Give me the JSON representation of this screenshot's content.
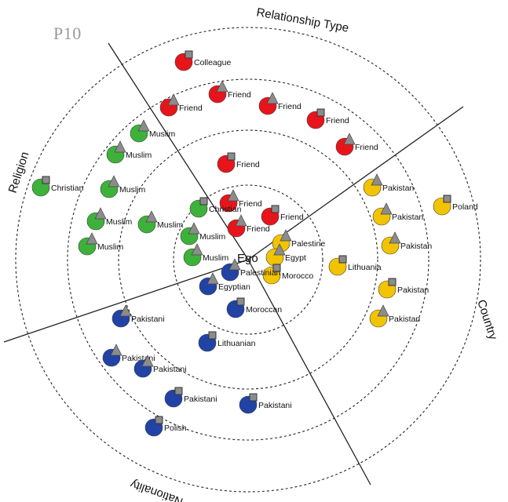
{
  "panel_id": "P10",
  "ego_label": "Ego",
  "sector_titles": {
    "relationship": "Relationship Type",
    "religion": "Religion",
    "country": "Country",
    "nationality": "Nationality"
  },
  "colors": {
    "relationship": "#e8141c",
    "religion": "#3db23a",
    "country": "#f2c400",
    "nationality": "#2243a6",
    "marker_triangle": "#8c8c8c",
    "marker_square": "#8c8c8c"
  },
  "nodes": [
    {
      "group": "relationship",
      "label": "Colleague",
      "marker": "square"
    },
    {
      "group": "relationship",
      "label": "Friend",
      "marker": "triangle"
    },
    {
      "group": "relationship",
      "label": "Friend",
      "marker": "triangle"
    },
    {
      "group": "relationship",
      "label": "Friend",
      "marker": "triangle"
    },
    {
      "group": "relationship",
      "label": "Friend",
      "marker": "square"
    },
    {
      "group": "relationship",
      "label": "Friend",
      "marker": "triangle"
    },
    {
      "group": "relationship",
      "label": "Friend",
      "marker": "square"
    },
    {
      "group": "relationship",
      "label": "Friend",
      "marker": "triangle"
    },
    {
      "group": "relationship",
      "label": "Friend",
      "marker": "square"
    },
    {
      "group": "relationship",
      "label": "Friend",
      "marker": "triangle"
    },
    {
      "group": "religion",
      "label": "Muslim",
      "marker": "triangle"
    },
    {
      "group": "religion",
      "label": "Muslim",
      "marker": "triangle"
    },
    {
      "group": "religion",
      "label": "Christian",
      "marker": "square"
    },
    {
      "group": "religion",
      "label": "Muslim",
      "marker": "triangle"
    },
    {
      "group": "religion",
      "label": "Muslim",
      "marker": "triangle"
    },
    {
      "group": "religion",
      "label": "Muslim",
      "marker": "triangle"
    },
    {
      "group": "religion",
      "label": "Muslim",
      "marker": "triangle"
    },
    {
      "group": "religion",
      "label": "Christian",
      "marker": "square"
    },
    {
      "group": "religion",
      "label": "Muslim",
      "marker": "triangle"
    },
    {
      "group": "religion",
      "label": "Muslim",
      "marker": "triangle"
    },
    {
      "group": "country",
      "label": "Pakistan",
      "marker": "triangle"
    },
    {
      "group": "country",
      "label": "Poland",
      "marker": "square"
    },
    {
      "group": "country",
      "label": "Pakistan",
      "marker": "triangle"
    },
    {
      "group": "country",
      "label": "Pakistan",
      "marker": "triangle"
    },
    {
      "group": "country",
      "label": "Lithuania",
      "marker": "square"
    },
    {
      "group": "country",
      "label": "Pakistan",
      "marker": "square"
    },
    {
      "group": "country",
      "label": "Pakistan",
      "marker": "triangle"
    },
    {
      "group": "country",
      "label": "Palestine",
      "marker": "triangle"
    },
    {
      "group": "country",
      "label": "Egypt",
      "marker": "triangle"
    },
    {
      "group": "country",
      "label": "Morocco",
      "marker": "square"
    },
    {
      "group": "nationality",
      "label": "Palestinian",
      "marker": "triangle"
    },
    {
      "group": "nationality",
      "label": "Egyptian",
      "marker": "triangle"
    },
    {
      "group": "nationality",
      "label": "Moroccan",
      "marker": "square"
    },
    {
      "group": "nationality",
      "label": "Lithuanian",
      "marker": "square"
    },
    {
      "group": "nationality",
      "label": "Pakistani",
      "marker": "triangle"
    },
    {
      "group": "nationality",
      "label": "Pakistani",
      "marker": "triangle"
    },
    {
      "group": "nationality",
      "label": "Pakistani",
      "marker": "triangle"
    },
    {
      "group": "nationality",
      "label": "Pakistani",
      "marker": "square"
    },
    {
      "group": "nationality",
      "label": "Pakistani",
      "marker": "square"
    },
    {
      "group": "nationality",
      "label": "Polish",
      "marker": "square"
    }
  ]
}
